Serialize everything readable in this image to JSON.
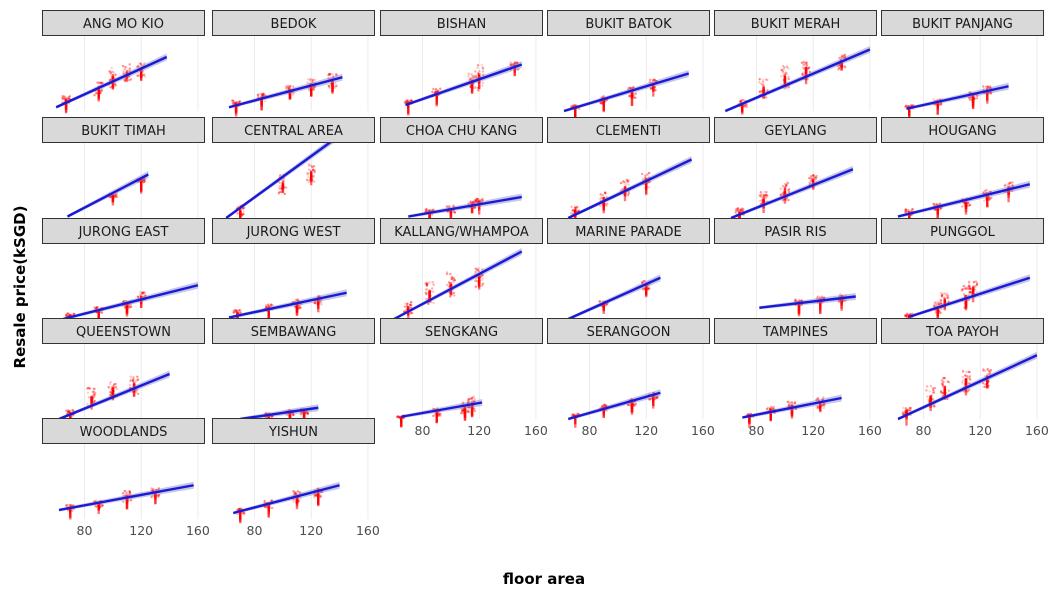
{
  "chart_data": {
    "type": "scatter",
    "subtype": "faceted scatter with linear regression fit",
    "xlabel": "floor area",
    "ylabel": "Resale price(kSGD)",
    "xlim": [
      50,
      165
    ],
    "x_ticks": [
      80,
      120,
      160
    ],
    "colors": {
      "points": "#ff0000",
      "fit_line": "#1a1ad6",
      "confidence_band": "#8080cc",
      "strip_fill": "#d9d9d9",
      "strip_border": "#333333",
      "grid": "#ebebeb"
    },
    "facets": [
      {
        "name": "ANG MO KIO",
        "fit": {
          "x": [
            60,
            138
          ],
          "y": [
            0.05,
            0.72
          ]
        },
        "clusters": [
          [
            67,
            0.15,
            0.1
          ],
          [
            90,
            0.3,
            0.2
          ],
          [
            100,
            0.45,
            0.3
          ],
          [
            110,
            0.5,
            0.25
          ],
          [
            120,
            0.55,
            0.2
          ]
        ]
      },
      {
        "name": "BEDOK",
        "fit": {
          "x": [
            62,
            142
          ],
          "y": [
            0.05,
            0.45
          ]
        },
        "clusters": [
          [
            67,
            0.1,
            0.08
          ],
          [
            85,
            0.18,
            0.1
          ],
          [
            105,
            0.28,
            0.12
          ],
          [
            120,
            0.35,
            0.15
          ],
          [
            135,
            0.4,
            0.2
          ]
        ]
      },
      {
        "name": "BISHAN",
        "fit": {
          "x": [
            68,
            150
          ],
          "y": [
            0.08,
            0.62
          ]
        },
        "clusters": [
          [
            70,
            0.12,
            0.05
          ],
          [
            90,
            0.25,
            0.1
          ],
          [
            115,
            0.4,
            0.2
          ],
          [
            120,
            0.45,
            0.35
          ],
          [
            145,
            0.6,
            0.1
          ]
        ]
      },
      {
        "name": "BUKIT BATOK",
        "fit": {
          "x": [
            62,
            150
          ],
          "y": [
            0.0,
            0.5
          ]
        },
        "clusters": [
          [
            70,
            0.05,
            0.05
          ],
          [
            90,
            0.15,
            0.1
          ],
          [
            110,
            0.25,
            0.15
          ],
          [
            125,
            0.35,
            0.15
          ]
        ]
      },
      {
        "name": "BUKIT MERAH",
        "fit": {
          "x": [
            58,
            160
          ],
          "y": [
            0.0,
            0.82
          ]
        },
        "clusters": [
          [
            70,
            0.1,
            0.1
          ],
          [
            85,
            0.3,
            0.25
          ],
          [
            100,
            0.45,
            0.3
          ],
          [
            115,
            0.55,
            0.25
          ],
          [
            140,
            0.65,
            0.2
          ]
        ]
      },
      {
        "name": "BUKIT PANJANG",
        "fit": {
          "x": [
            68,
            140
          ],
          "y": [
            0.03,
            0.33
          ]
        },
        "clusters": [
          [
            70,
            0.05,
            0.05
          ],
          [
            90,
            0.12,
            0.08
          ],
          [
            115,
            0.2,
            0.1
          ],
          [
            125,
            0.28,
            0.1
          ]
        ]
      },
      {
        "name": "BUKIT TIMAH",
        "fit": {
          "x": [
            68,
            125
          ],
          "y": [
            0.02,
            0.58
          ]
        },
        "clusters": [
          [
            100,
            0.3,
            0.05
          ],
          [
            120,
            0.5,
            0.05
          ]
        ]
      },
      {
        "name": "CENTRAL AREA",
        "fit": {
          "x": [
            60,
            140
          ],
          "y": [
            0.0,
            1.1
          ]
        },
        "clusters": [
          [
            70,
            0.1,
            0.15
          ],
          [
            100,
            0.45,
            0.3
          ],
          [
            120,
            0.6,
            0.25
          ]
        ]
      },
      {
        "name": "CHOA CHU KANG",
        "fit": {
          "x": [
            70,
            150
          ],
          "y": [
            0.02,
            0.28
          ]
        },
        "clusters": [
          [
            85,
            0.08,
            0.08
          ],
          [
            100,
            0.12,
            0.1
          ],
          [
            115,
            0.18,
            0.1
          ],
          [
            120,
            0.22,
            0.08
          ]
        ]
      },
      {
        "name": "CLEMENTI",
        "fit": {
          "x": [
            65,
            152
          ],
          "y": [
            0.0,
            0.78
          ]
        },
        "clusters": [
          [
            70,
            0.1,
            0.1
          ],
          [
            90,
            0.25,
            0.2
          ],
          [
            105,
            0.4,
            0.25
          ],
          [
            120,
            0.5,
            0.2
          ]
        ]
      },
      {
        "name": "GEYLANG",
        "fit": {
          "x": [
            62,
            148
          ],
          "y": [
            0.0,
            0.65
          ]
        },
        "clusters": [
          [
            68,
            0.08,
            0.1
          ],
          [
            85,
            0.25,
            0.2
          ],
          [
            100,
            0.35,
            0.25
          ],
          [
            120,
            0.5,
            0.15
          ]
        ]
      },
      {
        "name": "HOUGANG",
        "fit": {
          "x": [
            62,
            155
          ],
          "y": [
            0.02,
            0.45
          ]
        },
        "clusters": [
          [
            70,
            0.08,
            0.08
          ],
          [
            90,
            0.15,
            0.1
          ],
          [
            110,
            0.2,
            0.12
          ],
          [
            125,
            0.3,
            0.15
          ],
          [
            140,
            0.4,
            0.15
          ]
        ]
      },
      {
        "name": "JURONG EAST",
        "fit": {
          "x": [
            65,
            160
          ],
          "y": [
            0.0,
            0.45
          ]
        },
        "clusters": [
          [
            70,
            0.05,
            0.05
          ],
          [
            90,
            0.12,
            0.08
          ],
          [
            110,
            0.2,
            0.1
          ],
          [
            120,
            0.3,
            0.12
          ]
        ]
      },
      {
        "name": "JURONG WEST",
        "fit": {
          "x": [
            62,
            145
          ],
          "y": [
            0.02,
            0.35
          ]
        },
        "clusters": [
          [
            68,
            0.08,
            0.08
          ],
          [
            90,
            0.15,
            0.1
          ],
          [
            110,
            0.2,
            0.12
          ],
          [
            125,
            0.25,
            0.12
          ]
        ]
      },
      {
        "name": "KALLANG/WHAMPOA",
        "fit": {
          "x": [
            60,
            150
          ],
          "y": [
            0.0,
            0.9
          ]
        },
        "clusters": [
          [
            70,
            0.15,
            0.15
          ],
          [
            85,
            0.35,
            0.3
          ],
          [
            100,
            0.45,
            0.35
          ],
          [
            120,
            0.55,
            0.25
          ]
        ]
      },
      {
        "name": "MARINE PARADE",
        "fit": {
          "x": [
            65,
            130
          ],
          "y": [
            0.0,
            0.55
          ]
        },
        "clusters": [
          [
            90,
            0.2,
            0.08
          ],
          [
            120,
            0.45,
            0.12
          ]
        ]
      },
      {
        "name": "PASIR RIS",
        "fit": {
          "x": [
            82,
            150
          ],
          "y": [
            0.15,
            0.3
          ]
        },
        "clusters": [
          [
            110,
            0.22,
            0.08
          ],
          [
            125,
            0.25,
            0.1
          ],
          [
            140,
            0.28,
            0.1
          ]
        ]
      },
      {
        "name": "PUNGGOL",
        "fit": {
          "x": [
            70,
            155
          ],
          "y": [
            0.03,
            0.55
          ]
        },
        "clusters": [
          [
            70,
            0.05,
            0.05
          ],
          [
            90,
            0.15,
            0.15
          ],
          [
            95,
            0.25,
            0.2
          ],
          [
            110,
            0.3,
            0.3
          ],
          [
            115,
            0.4,
            0.2
          ]
        ]
      },
      {
        "name": "QUEENSTOWN",
        "fit": {
          "x": [
            62,
            140
          ],
          "y": [
            0.0,
            0.6
          ]
        },
        "clusters": [
          [
            70,
            0.08,
            0.1
          ],
          [
            85,
            0.3,
            0.25
          ],
          [
            100,
            0.4,
            0.2
          ],
          [
            115,
            0.45,
            0.25
          ]
        ]
      },
      {
        "name": "SEMBAWANG",
        "fit": {
          "x": [
            70,
            125
          ],
          "y": [
            0.0,
            0.15
          ]
        },
        "clusters": [
          [
            90,
            0.05,
            0.05
          ],
          [
            105,
            0.08,
            0.08
          ],
          [
            115,
            0.1,
            0.08
          ]
        ]
      },
      {
        "name": "SENGKANG",
        "fit": {
          "x": [
            65,
            122
          ],
          "y": [
            0.03,
            0.22
          ]
        },
        "clusters": [
          [
            65,
            0.03,
            0.03
          ],
          [
            90,
            0.1,
            0.12
          ],
          [
            110,
            0.15,
            0.15
          ],
          [
            115,
            0.2,
            0.2
          ]
        ]
      },
      {
        "name": "SERANGOON",
        "fit": {
          "x": [
            65,
            130
          ],
          "y": [
            0.0,
            0.35
          ]
        },
        "clusters": [
          [
            70,
            0.05,
            0.05
          ],
          [
            90,
            0.15,
            0.08
          ],
          [
            110,
            0.22,
            0.1
          ],
          [
            125,
            0.3,
            0.1
          ]
        ]
      },
      {
        "name": "TAMPINES",
        "fit": {
          "x": [
            70,
            140
          ],
          "y": [
            0.02,
            0.28
          ]
        },
        "clusters": [
          [
            75,
            0.05,
            0.05
          ],
          [
            90,
            0.12,
            0.1
          ],
          [
            105,
            0.18,
            0.1
          ],
          [
            125,
            0.22,
            0.15
          ]
        ]
      },
      {
        "name": "TOA PAYOH",
        "fit": {
          "x": [
            62,
            160
          ],
          "y": [
            0.0,
            0.85
          ]
        },
        "clusters": [
          [
            68,
            0.1,
            0.1
          ],
          [
            85,
            0.3,
            0.3
          ],
          [
            95,
            0.4,
            0.3
          ],
          [
            110,
            0.5,
            0.3
          ],
          [
            125,
            0.55,
            0.25
          ]
        ]
      },
      {
        "name": "WOODLANDS",
        "fit": {
          "x": [
            62,
            157
          ],
          "y": [
            0.12,
            0.45
          ]
        },
        "clusters": [
          [
            70,
            0.15,
            0.08
          ],
          [
            90,
            0.2,
            0.1
          ],
          [
            110,
            0.3,
            0.15
          ],
          [
            130,
            0.35,
            0.12
          ]
        ]
      },
      {
        "name": "YISHUN",
        "fit": {
          "x": [
            65,
            140
          ],
          "y": [
            0.08,
            0.45
          ]
        },
        "clusters": [
          [
            70,
            0.1,
            0.08
          ],
          [
            90,
            0.2,
            0.12
          ],
          [
            110,
            0.3,
            0.15
          ],
          [
            125,
            0.35,
            0.12
          ]
        ]
      }
    ]
  }
}
